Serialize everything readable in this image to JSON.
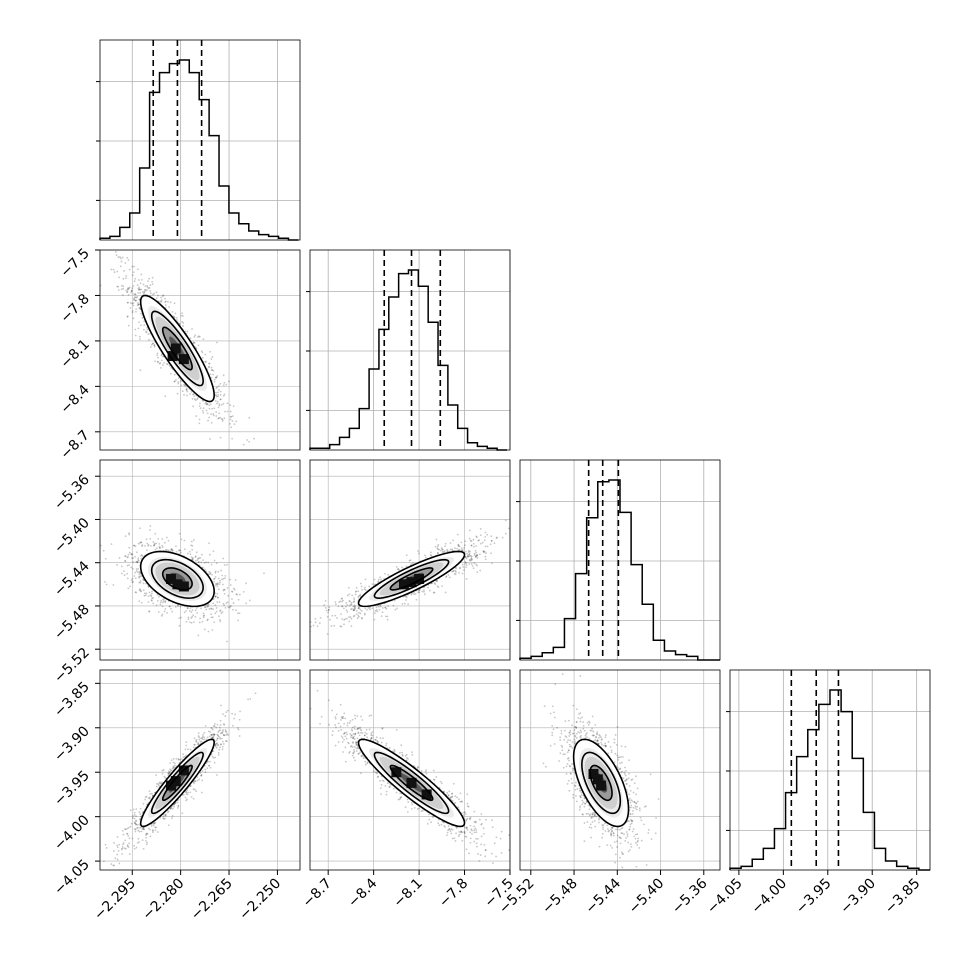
{
  "chart_data": {
    "type": "corner",
    "parameters": 4,
    "grid": true,
    "colors": {
      "ink": "#000000",
      "grid": "#b0b0b0",
      "scatter": "#000000"
    },
    "axes": [
      {
        "range": [
          -2.305,
          -2.243
        ],
        "ticks": [
          -2.295,
          -2.28,
          -2.265,
          -2.25
        ],
        "tick_labels": [
          "−2.295",
          "−2.280",
          "−2.265",
          "−2.250"
        ]
      },
      {
        "range": [
          -8.82,
          -7.5
        ],
        "ticks": [
          -8.7,
          -8.4,
          -8.1,
          -7.8,
          -7.5
        ],
        "tick_labels": [
          "−8.7",
          "−8.4",
          "−8.1",
          "−7.8",
          "−7.5"
        ]
      },
      {
        "range": [
          -5.53,
          -5.345
        ],
        "ticks": [
          -5.52,
          -5.48,
          -5.44,
          -5.4,
          -5.36
        ],
        "tick_labels": [
          "−5.52",
          "−5.48",
          "−5.44",
          "−5.40",
          "−5.36"
        ]
      },
      {
        "range": [
          -4.06,
          -3.835
        ],
        "ticks": [
          -4.05,
          -4.0,
          -3.95,
          -3.9,
          -3.85
        ],
        "tick_labels": [
          "−4.05",
          "−4.00",
          "−3.95",
          "−3.90",
          "−3.85"
        ]
      }
    ],
    "histograms": [
      {
        "param": 0,
        "quantiles": [
          -2.2885,
          -2.281,
          -2.2735
        ],
        "bin_edges_range": [
          -2.305,
          -2.2435
        ],
        "counts": [
          0.01,
          0.02,
          0.07,
          0.15,
          0.4,
          0.82,
          0.93,
          0.98,
          1.0,
          0.93,
          0.78,
          0.58,
          0.3,
          0.15,
          0.09,
          0.05,
          0.03,
          0.02,
          0.01,
          0.0
        ]
      },
      {
        "param": 1,
        "quantiles": [
          -8.33,
          -8.15,
          -7.96
        ],
        "bin_edges_range": [
          -8.82,
          -7.52
        ],
        "counts": [
          0.01,
          0.01,
          0.03,
          0.07,
          0.12,
          0.23,
          0.45,
          0.67,
          0.85,
          0.98,
          1.0,
          0.91,
          0.71,
          0.47,
          0.25,
          0.12,
          0.04,
          0.02,
          0.01,
          0.0
        ]
      },
      {
        "param": 2,
        "quantiles": [
          -5.4665,
          -5.4535,
          -5.439
        ],
        "bin_edges_range": [
          -5.53,
          -5.345
        ],
        "counts": [
          0.01,
          0.02,
          0.04,
          0.07,
          0.23,
          0.48,
          0.79,
          0.99,
          1.0,
          0.82,
          0.53,
          0.31,
          0.11,
          0.05,
          0.03,
          0.02,
          0.0,
          0.0
        ]
      },
      {
        "param": 3,
        "quantiles": [
          -3.991,
          -3.963,
          -3.938
        ],
        "bin_edges_range": [
          -4.06,
          -3.835
        ],
        "counts": [
          0.01,
          0.02,
          0.06,
          0.12,
          0.23,
          0.43,
          0.63,
          0.78,
          0.92,
          1.0,
          0.88,
          0.62,
          0.32,
          0.12,
          0.05,
          0.02,
          0.01,
          0.0
        ]
      }
    ],
    "pairs": [
      {
        "x": 0,
        "y": 1,
        "center": [
          -2.281,
          -8.15
        ],
        "sd": [
          0.0057,
          0.175
        ],
        "rho": -0.88,
        "density_peaks": [
          [
            -2.2825,
            -8.2
          ],
          [
            -2.279,
            -8.22
          ],
          [
            -2.2815,
            -8.15
          ]
        ]
      },
      {
        "x": 0,
        "y": 2,
        "center": [
          -2.281,
          -5.455
        ],
        "sd": [
          0.0057,
          0.0127
        ],
        "rho": -0.45,
        "density_peaks": [
          [
            -2.283,
            -5.455
          ],
          [
            -2.279,
            -5.462
          ],
          [
            -2.281,
            -5.46
          ]
        ]
      },
      {
        "x": 0,
        "y": 3,
        "center": [
          -2.281,
          -3.962
        ],
        "sd": [
          0.0057,
          0.0245
        ],
        "rho": 0.93,
        "density_peaks": [
          [
            -2.283,
            -3.965
          ],
          [
            -2.279,
            -3.948
          ],
          [
            -2.2815,
            -3.96
          ]
        ]
      },
      {
        "x": 1,
        "y": 2,
        "center": [
          -8.15,
          -5.455
        ],
        "sd": [
          0.175,
          0.0127
        ],
        "rho": 0.88,
        "density_peaks": [
          [
            -8.2,
            -5.46
          ],
          [
            -8.1,
            -5.455
          ],
          [
            -8.15,
            -5.458
          ]
        ]
      },
      {
        "x": 1,
        "y": 3,
        "center": [
          -8.15,
          -3.962
        ],
        "sd": [
          0.175,
          0.0245
        ],
        "rho": -0.92,
        "density_peaks": [
          [
            -8.25,
            -3.95
          ],
          [
            -8.15,
            -3.962
          ],
          [
            -8.05,
            -3.975
          ]
        ]
      },
      {
        "x": 2,
        "y": 3,
        "center": [
          -5.455,
          -3.962
        ],
        "sd": [
          0.0127,
          0.0245
        ],
        "rho": -0.6,
        "density_peaks": [
          [
            -5.462,
            -3.952
          ],
          [
            -5.455,
            -3.965
          ],
          [
            -5.458,
            -3.958
          ]
        ]
      }
    ]
  }
}
